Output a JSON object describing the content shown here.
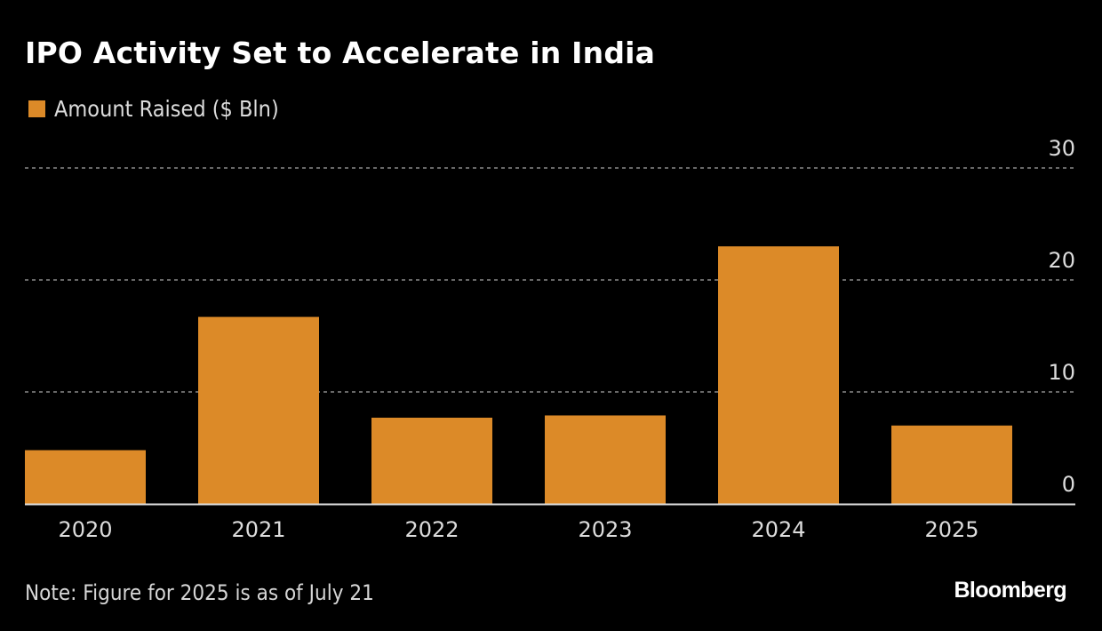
{
  "chart_data": {
    "type": "bar",
    "title": "IPO Activity Set to Accelerate in India",
    "categories": [
      "2020",
      "2021",
      "2022",
      "2023",
      "2024",
      "2025"
    ],
    "series": [
      {
        "name": "Amount Raised ($ Bln)",
        "values": [
          4.8,
          16.7,
          7.7,
          7.9,
          23.0,
          7.0
        ],
        "color": "#dc8a28"
      }
    ],
    "xlabel": "",
    "ylabel": "",
    "ylim": [
      0,
      30
    ],
    "yticks": [
      0,
      10,
      20,
      30
    ],
    "ytick_labels": [
      "0",
      "10",
      "20",
      "30"
    ],
    "y_axis_position": "right",
    "grid": true,
    "legend_position": "top-left",
    "note": "Note: Figure for 2025 is as of July 21",
    "source": "Bloomberg"
  },
  "colors": {
    "background": "#000000",
    "bar": "#dc8a28",
    "grid": "#8a8a8a",
    "axis": "#e0e0e0",
    "text": "#dcdcdc"
  }
}
